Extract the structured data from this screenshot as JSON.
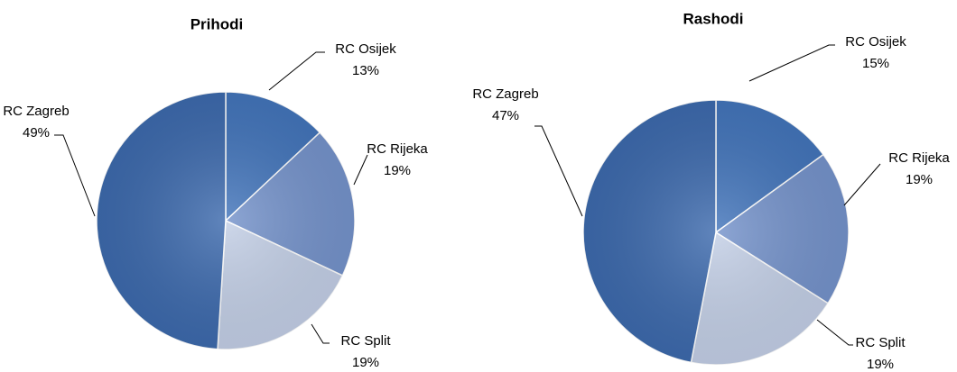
{
  "chart_data": [
    {
      "type": "pie",
      "title": "Prihodi",
      "categories": [
        "RC Osijek",
        "RC Rijeka",
        "RC Split",
        "RC Zagreb"
      ],
      "values": [
        13,
        19,
        19,
        49
      ],
      "value_labels": [
        "13%",
        "19%",
        "19%",
        "49%"
      ],
      "colors": [
        "#4375bb",
        "#7593cb",
        "#c3cfe6",
        "#3d6aad"
      ]
    },
    {
      "type": "pie",
      "title": "Rashodi",
      "categories": [
        "RC Osijek",
        "RC Rijeka",
        "RC Split",
        "RC Zagreb"
      ],
      "values": [
        15,
        19,
        19,
        47
      ],
      "value_labels": [
        "15%",
        "19%",
        "19%",
        "47%"
      ],
      "colors": [
        "#4375bb",
        "#7593cb",
        "#c3cfe6",
        "#3d6aad"
      ]
    }
  ]
}
